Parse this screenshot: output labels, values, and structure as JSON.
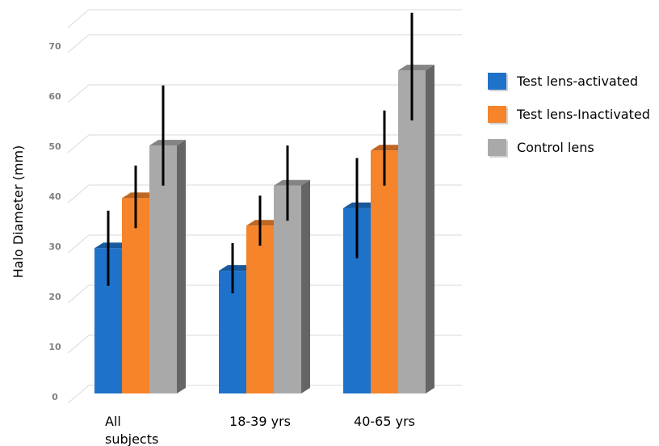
{
  "chart_data": {
    "type": "bar",
    "title": "",
    "xlabel": "",
    "ylabel": "Halo Diameter (mm)",
    "ylim": [
      0,
      75
    ],
    "yticks": [
      "0",
      "10",
      "20",
      "30",
      "40",
      "50",
      "60",
      "70"
    ],
    "grid": true,
    "legend_position": "right",
    "categories": [
      "All subjects",
      "18-39 yrs",
      "40-65 yrs"
    ],
    "series": [
      {
        "name": "Test lens-activated",
        "color": "#1f72c9",
        "values": [
          29,
          24.5,
          37
        ],
        "error_low": [
          21.5,
          20,
          27
        ],
        "error_high": [
          36.5,
          30,
          47
        ]
      },
      {
        "name": "Test lens-Inactivated",
        "color": "#f5842b",
        "values": [
          39,
          33.5,
          48.5
        ],
        "error_low": [
          33,
          29.5,
          41.5
        ],
        "error_high": [
          45.5,
          39.5,
          56.5
        ]
      },
      {
        "name": "Control lens",
        "color": "#a9a9a9",
        "values": [
          49.5,
          41.5,
          64.5
        ],
        "error_low": [
          41.5,
          34.5,
          54.5
        ],
        "error_high": [
          61.5,
          49.5,
          76
        ]
      }
    ]
  }
}
